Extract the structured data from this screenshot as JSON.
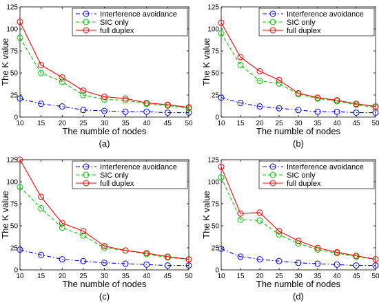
{
  "chart_data": [
    {
      "type": "line",
      "caption": "(a)",
      "xlabel": "The numble of nodes",
      "ylabel": "The K value",
      "xlim": [
        10,
        50
      ],
      "ylim": [
        0,
        125
      ],
      "xticks": [
        10,
        15,
        20,
        25,
        30,
        35,
        40,
        45,
        50
      ],
      "yticks": [
        0,
        25,
        50,
        75,
        100,
        125
      ],
      "x": [
        10,
        15,
        20,
        25,
        30,
        35,
        40,
        45,
        50
      ],
      "legend_position": "top-right",
      "grid": false,
      "series": [
        {
          "name": "Interference avoidance",
          "color": "#0000ff",
          "style": "dash-dot",
          "marker": "circle",
          "values": [
            21,
            15,
            12,
            8,
            7,
            6,
            6,
            5,
            5
          ]
        },
        {
          "name": "SIC only",
          "color": "#00cc00",
          "style": "dashed",
          "marker": "circle",
          "values": [
            90,
            50,
            40,
            25,
            20,
            19,
            15,
            13,
            10
          ]
        },
        {
          "name": "full duplex",
          "color": "#ff0000",
          "style": "solid",
          "marker": "circle",
          "values": [
            108,
            59,
            45,
            30,
            23,
            21,
            16,
            14,
            11
          ]
        }
      ]
    },
    {
      "type": "line",
      "caption": "(b)",
      "xlabel": "The numble of nodes",
      "ylabel": "The K value",
      "xlim": [
        10,
        50
      ],
      "ylim": [
        0,
        125
      ],
      "xticks": [
        10,
        15,
        20,
        25,
        30,
        35,
        40,
        45,
        50
      ],
      "yticks": [
        0,
        25,
        50,
        75,
        100,
        125
      ],
      "x": [
        10,
        15,
        20,
        25,
        30,
        35,
        40,
        45,
        50
      ],
      "legend_position": "top-right",
      "grid": false,
      "series": [
        {
          "name": "Interference avoidance",
          "color": "#0000ff",
          "style": "dash-dot",
          "marker": "circle",
          "values": [
            22,
            16,
            12,
            10,
            8,
            6,
            6,
            5,
            5
          ]
        },
        {
          "name": "SIC only",
          "color": "#00cc00",
          "style": "dashed",
          "marker": "circle",
          "values": [
            95,
            59,
            41,
            38,
            26,
            21,
            18,
            14,
            11
          ]
        },
        {
          "name": "full duplex",
          "color": "#ff0000",
          "style": "solid",
          "marker": "circle",
          "values": [
            107,
            68,
            52,
            42,
            27,
            22,
            19,
            15,
            12
          ]
        }
      ]
    },
    {
      "type": "line",
      "caption": "(c)",
      "xlabel": "The numble of nodes",
      "ylabel": "The K value",
      "xlim": [
        10,
        50
      ],
      "ylim": [
        0,
        125
      ],
      "xticks": [
        10,
        15,
        20,
        25,
        30,
        35,
        40,
        45,
        50
      ],
      "yticks": [
        0,
        25,
        50,
        75,
        100,
        125
      ],
      "x": [
        10,
        15,
        20,
        25,
        30,
        35,
        40,
        45,
        50
      ],
      "legend_position": "top-right",
      "grid": false,
      "series": [
        {
          "name": "Interference avoidance",
          "color": "#0000ff",
          "style": "dash-dot",
          "marker": "circle",
          "values": [
            23,
            17,
            12,
            10,
            8,
            7,
            6,
            5,
            5
          ]
        },
        {
          "name": "SIC only",
          "color": "#00cc00",
          "style": "dashed",
          "marker": "circle",
          "values": [
            94,
            70,
            48,
            39,
            25,
            22,
            18,
            14,
            12
          ]
        },
        {
          "name": "full duplex",
          "color": "#ff0000",
          "style": "solid",
          "marker": "circle",
          "values": [
            125,
            83,
            53,
            44,
            27,
            22,
            19,
            15,
            12
          ]
        }
      ]
    },
    {
      "type": "line",
      "caption": "(d)",
      "xlabel": "The numble of nodes",
      "ylabel": "The K value",
      "xlim": [
        10,
        50
      ],
      "ylim": [
        0,
        125
      ],
      "xticks": [
        10,
        15,
        20,
        25,
        30,
        35,
        40,
        45,
        50
      ],
      "yticks": [
        0,
        25,
        50,
        75,
        100,
        125
      ],
      "x": [
        10,
        15,
        20,
        25,
        30,
        35,
        40,
        45,
        50
      ],
      "legend_position": "top-right",
      "grid": false,
      "series": [
        {
          "name": "Interference avoidance",
          "color": "#0000ff",
          "style": "dash-dot",
          "marker": "circle",
          "values": [
            24,
            15,
            12,
            10,
            8,
            7,
            6,
            5,
            5
          ]
        },
        {
          "name": "SIC only",
          "color": "#00cc00",
          "style": "dashed",
          "marker": "circle",
          "values": [
            105,
            57,
            56,
            40,
            30,
            23,
            19,
            15,
            12
          ]
        },
        {
          "name": "full duplex",
          "color": "#ff0000",
          "style": "solid",
          "marker": "circle",
          "values": [
            117,
            64,
            65,
            44,
            33,
            25,
            20,
            16,
            12
          ]
        }
      ]
    }
  ]
}
